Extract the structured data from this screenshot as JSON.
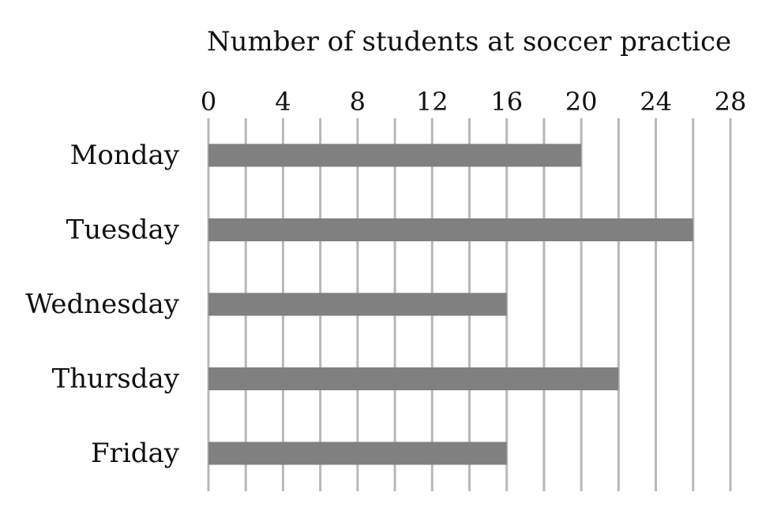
{
  "chart_data": {
    "type": "bar",
    "orientation": "horizontal",
    "title": "Number of students at soccer practice",
    "categories": [
      "Monday",
      "Tuesday",
      "Wednesday",
      "Thursday",
      "Friday"
    ],
    "values": [
      20,
      26,
      16,
      22,
      16
    ],
    "xlim": [
      0,
      28
    ],
    "xticks": [
      0,
      4,
      8,
      12,
      16,
      20,
      24,
      28
    ],
    "xtick_labels": [
      "0",
      "4",
      "8",
      "12",
      "16",
      "20",
      "24",
      "28"
    ],
    "grid": true,
    "grid_step": 2,
    "axis_position": "top",
    "bar_color": "#808080",
    "grid_color": "#b8b8b8"
  }
}
